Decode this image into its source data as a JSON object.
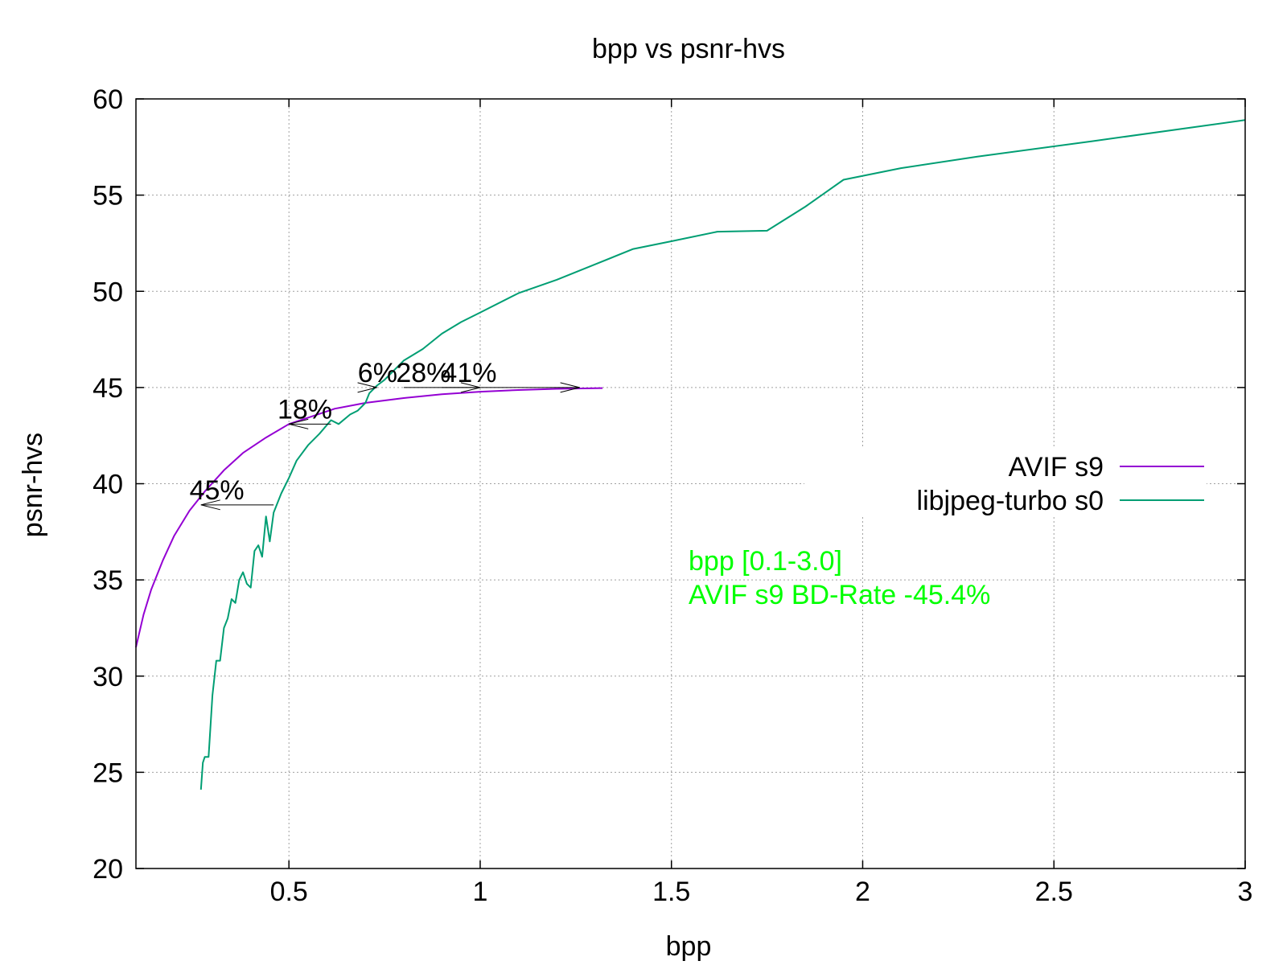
{
  "chart_data": {
    "type": "line",
    "title": "bpp vs psnr-hvs",
    "xlabel": "bpp",
    "ylabel": "psnr-hvs",
    "xlim": [
      0.1,
      3.0
    ],
    "ylim": [
      20,
      60
    ],
    "grid": true,
    "legend_position": "right",
    "x_ticks": [
      0.5,
      1,
      1.5,
      2,
      2.5,
      3
    ],
    "x_tick_labels": [
      "0.5",
      "1",
      "1.5",
      "2",
      "2.5",
      "3"
    ],
    "y_ticks": [
      20,
      25,
      30,
      35,
      40,
      45,
      50,
      55,
      60
    ],
    "y_tick_labels": [
      "20",
      "25",
      "30",
      "35",
      "40",
      "45",
      "50",
      "55",
      "60"
    ],
    "series": [
      {
        "name": "AVIF s9",
        "color": "#9400d3",
        "points": [
          [
            0.1,
            31.5
          ],
          [
            0.12,
            33.2
          ],
          [
            0.14,
            34.5
          ],
          [
            0.17,
            36.0
          ],
          [
            0.2,
            37.3
          ],
          [
            0.24,
            38.6
          ],
          [
            0.28,
            39.6
          ],
          [
            0.33,
            40.7
          ],
          [
            0.38,
            41.6
          ],
          [
            0.44,
            42.4
          ],
          [
            0.5,
            43.1
          ],
          [
            0.56,
            43.5
          ],
          [
            0.62,
            43.9
          ],
          [
            0.7,
            44.2
          ],
          [
            0.8,
            44.45
          ],
          [
            0.9,
            44.65
          ],
          [
            1.0,
            44.78
          ],
          [
            1.1,
            44.87
          ],
          [
            1.2,
            44.93
          ],
          [
            1.32,
            44.97
          ]
        ]
      },
      {
        "name": "libjpeg-turbo s0",
        "color": "#009e73",
        "points": [
          [
            0.27,
            24.1
          ],
          [
            0.275,
            25.5
          ],
          [
            0.28,
            25.8
          ],
          [
            0.29,
            25.8
          ],
          [
            0.3,
            29.0
          ],
          [
            0.31,
            30.8
          ],
          [
            0.32,
            30.8
          ],
          [
            0.33,
            32.5
          ],
          [
            0.34,
            33.0
          ],
          [
            0.35,
            34.0
          ],
          [
            0.36,
            33.8
          ],
          [
            0.37,
            35.0
          ],
          [
            0.38,
            35.4
          ],
          [
            0.39,
            34.8
          ],
          [
            0.4,
            34.6
          ],
          [
            0.41,
            36.5
          ],
          [
            0.42,
            36.8
          ],
          [
            0.43,
            36.2
          ],
          [
            0.44,
            38.3
          ],
          [
            0.45,
            37.0
          ],
          [
            0.46,
            38.5
          ],
          [
            0.48,
            39.5
          ],
          [
            0.5,
            40.3
          ],
          [
            0.52,
            41.2
          ],
          [
            0.55,
            42.0
          ],
          [
            0.58,
            42.6
          ],
          [
            0.61,
            43.3
          ],
          [
            0.63,
            43.1
          ],
          [
            0.66,
            43.6
          ],
          [
            0.68,
            43.8
          ],
          [
            0.7,
            44.2
          ],
          [
            0.71,
            44.7
          ],
          [
            0.73,
            45.1
          ],
          [
            0.75,
            45.4
          ],
          [
            0.78,
            46.0
          ],
          [
            0.8,
            46.4
          ],
          [
            0.85,
            47.0
          ],
          [
            0.9,
            47.8
          ],
          [
            0.95,
            48.4
          ],
          [
            1.0,
            48.9
          ],
          [
            1.1,
            49.9
          ],
          [
            1.2,
            50.6
          ],
          [
            1.3,
            51.4
          ],
          [
            1.4,
            52.2
          ],
          [
            1.5,
            52.6
          ],
          [
            1.62,
            53.1
          ],
          [
            1.75,
            53.15
          ],
          [
            1.85,
            54.4
          ],
          [
            1.95,
            55.8
          ],
          [
            2.1,
            56.4
          ],
          [
            2.3,
            57.0
          ],
          [
            2.6,
            57.8
          ],
          [
            3.0,
            58.9
          ]
        ]
      }
    ],
    "annotations": [
      {
        "label": "45%",
        "y": 38.9,
        "x_from": 0.46,
        "x_to": 0.27,
        "label_x": 0.24
      },
      {
        "label": "18%",
        "y": 43.1,
        "x_from": 0.61,
        "x_to": 0.5,
        "label_x": 0.47
      },
      {
        "label": "6%",
        "y": 45.0,
        "x_from": 0.72,
        "x_to": 0.73,
        "label_x": 0.68
      },
      {
        "label": "28%",
        "y": 45.0,
        "x_from": 0.8,
        "x_to": 1.0,
        "label_x": 0.78
      },
      {
        "label": "41%",
        "y": 45.0,
        "x_from": 0.9,
        "x_to": 1.26,
        "label_x": 0.9
      }
    ],
    "bd_rate_note": {
      "color": "#00ff00",
      "lines": [
        "bpp [0.1-3.0]",
        "AVIF s9 BD-Rate -45.4%"
      ]
    }
  }
}
